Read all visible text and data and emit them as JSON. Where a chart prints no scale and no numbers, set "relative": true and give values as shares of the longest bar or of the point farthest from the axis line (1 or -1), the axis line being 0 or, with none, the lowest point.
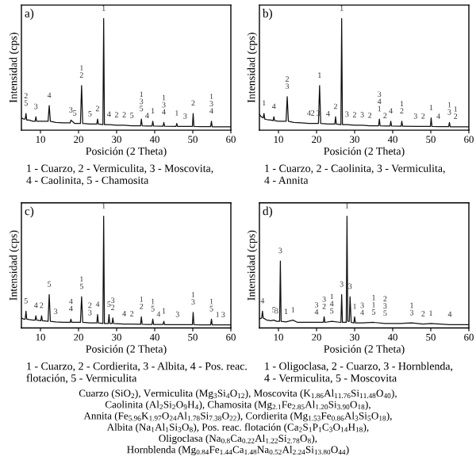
{
  "chart_data": [
    {
      "type": "line",
      "title": "a)",
      "xlabel": "Posición (2 Theta)",
      "ylabel": "Intensidad (cps)",
      "relative": true,
      "color": "#111111",
      "xlim": [
        5,
        60
      ],
      "xticks": [
        10,
        20,
        30,
        40,
        50,
        60
      ],
      "x": [
        5,
        5.5,
        6,
        6.2,
        6.4,
        7,
        8,
        8.6,
        8.8,
        9,
        10,
        11,
        12,
        12.3,
        12.6,
        14,
        16,
        17.8,
        18,
        19,
        20.5,
        20.8,
        21.1,
        23,
        24.8,
        25,
        25.2,
        26.4,
        26.6,
        26.8,
        28,
        30,
        32,
        34,
        36.3,
        36.5,
        36.7,
        38,
        39.3,
        39.5,
        39.7,
        42.2,
        42.4,
        42.6,
        45.6,
        45.8,
        46,
        48,
        49.9,
        50.1,
        50.3,
        52,
        54.7,
        54.9,
        55.1,
        58,
        60
      ],
      "values": [
        0.11,
        0.1,
        0.1,
        0.15,
        0.09,
        0.09,
        0.08,
        0.08,
        0.12,
        0.08,
        0.08,
        0.08,
        0.08,
        0.22,
        0.08,
        0.07,
        0.065,
        0.065,
        0.09,
        0.06,
        0.06,
        0.4,
        0.06,
        0.055,
        0.055,
        0.1,
        0.055,
        0.05,
        1.0,
        0.05,
        0.05,
        0.045,
        0.045,
        0.04,
        0.04,
        0.1,
        0.04,
        0.038,
        0.038,
        0.08,
        0.037,
        0.036,
        0.07,
        0.035,
        0.034,
        0.06,
        0.034,
        0.033,
        0.033,
        0.15,
        0.033,
        0.032,
        0.032,
        0.08,
        0.031,
        0.03,
        0.03
      ],
      "annotations": [
        {
          "text": "2\n5",
          "x": 6.2,
          "y": 0.15
        },
        {
          "text": "3",
          "x": 8.8,
          "y": 0.12
        },
        {
          "text": "4",
          "x": 12.3,
          "y": 0.22
        },
        {
          "text": "3",
          "x": 18,
          "y": 0.09
        },
        {
          "text": "5",
          "x": 19,
          "y": 0.06
        },
        {
          "text": "1\n2",
          "x": 20.8,
          "y": 0.4
        },
        {
          "text": "5",
          "x": 23,
          "y": 0.055
        },
        {
          "text": "2",
          "x": 25,
          "y": 0.1
        },
        {
          "text": "1",
          "x": 26.6,
          "y": 1.0
        },
        {
          "text": "4",
          "x": 28,
          "y": 0.05
        },
        {
          "text": "2",
          "x": 30,
          "y": 0.045
        },
        {
          "text": "2",
          "x": 32,
          "y": 0.045
        },
        {
          "text": "5",
          "x": 34,
          "y": 0.04
        },
        {
          "text": "1\n3\n5",
          "x": 36.5,
          "y": 0.1
        },
        {
          "text": "4",
          "x": 38,
          "y": 0.038
        },
        {
          "text": "1",
          "x": 39.5,
          "y": 0.08
        },
        {
          "text": "1\n3\n4",
          "x": 42.4,
          "y": 0.07
        },
        {
          "text": "1",
          "x": 45.8,
          "y": 0.06
        },
        {
          "text": "3",
          "x": 48,
          "y": 0.033
        },
        {
          "text": "2",
          "x": 50.1,
          "y": 0.15
        },
        {
          "text": "1\n3\n4",
          "x": 54.9,
          "y": 0.08
        },
        "1 - Cuarzo, 2 - Vermiculita, 3 - Moscovita,",
        "4 - Caolinita, 5 - Chamosita"
      ]
    },
    {
      "type": "line",
      "title": "b)",
      "xlabel": "Posición (2 Theta)",
      "ylabel": "Intensidad (cps)",
      "relative": true,
      "color": "#111111",
      "xlim": [
        5,
        60
      ],
      "xticks": [
        10,
        20,
        30,
        40,
        50,
        60
      ],
      "x": [
        5,
        5.5,
        6,
        6.2,
        6.4,
        7,
        8,
        8.6,
        8.8,
        9,
        10,
        11,
        12,
        12.3,
        12.6,
        14,
        16,
        18,
        19,
        20.5,
        20.8,
        21.1,
        23,
        24.8,
        25,
        25.2,
        26.4,
        26.6,
        26.8,
        28,
        30,
        32,
        34,
        36.3,
        36.5,
        36.7,
        38,
        39.3,
        39.5,
        39.7,
        42.2,
        42.4,
        42.6,
        46,
        48,
        49.9,
        50.1,
        50.3,
        52,
        54.7,
        54.9,
        55.1,
        56.5,
        58,
        60
      ],
      "values": [
        0.14,
        0.12,
        0.11,
        0.15,
        0.1,
        0.095,
        0.09,
        0.085,
        0.12,
        0.085,
        0.08,
        0.08,
        0.08,
        0.3,
        0.08,
        0.07,
        0.065,
        0.06,
        0.06,
        0.06,
        0.4,
        0.06,
        0.055,
        0.055,
        0.12,
        0.055,
        0.05,
        1.0,
        0.05,
        0.05,
        0.045,
        0.045,
        0.04,
        0.04,
        0.1,
        0.04,
        0.038,
        0.038,
        0.08,
        0.037,
        0.036,
        0.08,
        0.035,
        0.034,
        0.033,
        0.033,
        0.11,
        0.033,
        0.032,
        0.032,
        0.07,
        0.031,
        0.031,
        0.03,
        0.03
      ],
      "annotations": [
        {
          "text": "1",
          "x": 6.2,
          "y": 0.15
        },
        {
          "text": "4",
          "x": 8.8,
          "y": 0.12
        },
        {
          "text": "2\n3",
          "x": 12.3,
          "y": 0.3
        },
        {
          "text": "4",
          "x": 18,
          "y": 0.06
        },
        {
          "text": "2",
          "x": 19,
          "y": 0.06
        },
        {
          "text": "3",
          "x": 20.5,
          "y": 0.06
        },
        {
          "text": "1",
          "x": 20.8,
          "y": 0.4
        },
        {
          "text": "4",
          "x": 23,
          "y": 0.055
        },
        {
          "text": "2",
          "x": 25,
          "y": 0.12
        },
        {
          "text": "1",
          "x": 26.6,
          "y": 1.0
        },
        {
          "text": "3",
          "x": 28,
          "y": 0.05
        },
        {
          "text": "2",
          "x": 30,
          "y": 0.045
        },
        {
          "text": "3",
          "x": 32,
          "y": 0.045
        },
        {
          "text": "2",
          "x": 34,
          "y": 0.04
        },
        {
          "text": "3\n4\n1",
          "x": 36.5,
          "y": 0.1
        },
        {
          "text": "2",
          "x": 38,
          "y": 0.038
        },
        {
          "text": "4",
          "x": 39.5,
          "y": 0.08
        },
        {
          "text": "1\n2",
          "x": 42.4,
          "y": 0.08
        },
        {
          "text": "3",
          "x": 46,
          "y": 0.033
        },
        {
          "text": "2",
          "x": 48,
          "y": 0.033
        },
        {
          "text": "1",
          "x": 50.1,
          "y": 0.11
        },
        {
          "text": "4",
          "x": 52,
          "y": 0.032
        },
        {
          "text": "1\n3",
          "x": 54.9,
          "y": 0.07
        },
        {
          "text": "1\n2",
          "x": 56.5,
          "y": 0.031
        },
        "1 - Cuarzo, 2 - Caolinita, 3 - Vermiculita,",
        "4 - Annita"
      ]
    },
    {
      "type": "line",
      "title": "c)",
      "xlabel": "Posición (2 Theta)",
      "ylabel": "Intensidad (cps)",
      "relative": true,
      "color": "#111111",
      "xlim": [
        5,
        60
      ],
      "xticks": [
        10,
        20,
        30,
        40,
        50,
        60
      ],
      "x": [
        5,
        5.5,
        6,
        6.2,
        6.4,
        7,
        8,
        8.6,
        8.8,
        9,
        10.1,
        10.3,
        10.5,
        12,
        12.3,
        12.6,
        14,
        16,
        17.8,
        18,
        18.2,
        20.5,
        20.8,
        21.1,
        23,
        24.8,
        25,
        25.2,
        26.4,
        26.6,
        26.8,
        27.8,
        28,
        28.2,
        28.8,
        29,
        29.2,
        32,
        34,
        36.3,
        36.5,
        36.7,
        38,
        39.3,
        39.5,
        39.7,
        41,
        42.2,
        42.4,
        42.6,
        46,
        48,
        49.9,
        50.1,
        50.3,
        52,
        54.7,
        54.9,
        55.1,
        56.5,
        58,
        60
      ],
      "values": [
        0.09,
        0.08,
        0.08,
        0.15,
        0.08,
        0.075,
        0.07,
        0.07,
        0.11,
        0.07,
        0.065,
        0.11,
        0.065,
        0.06,
        0.3,
        0.06,
        0.055,
        0.05,
        0.05,
        0.08,
        0.05,
        0.05,
        0.28,
        0.05,
        0.045,
        0.045,
        0.12,
        0.045,
        0.04,
        1.0,
        0.04,
        0.04,
        0.12,
        0.04,
        0.04,
        0.09,
        0.04,
        0.035,
        0.035,
        0.033,
        0.1,
        0.033,
        0.032,
        0.032,
        0.08,
        0.031,
        0.031,
        0.031,
        0.06,
        0.03,
        0.03,
        0.03,
        0.03,
        0.14,
        0.03,
        0.028,
        0.028,
        0.08,
        0.028,
        0.027,
        0.027,
        0.027
      ],
      "annotations": [
        {
          "text": "5",
          "x": 6.2,
          "y": 0.15
        },
        {
          "text": "4",
          "x": 8.8,
          "y": 0.11
        },
        {
          "text": "2",
          "x": 10.3,
          "y": 0.11
        },
        {
          "text": "5",
          "x": 12.3,
          "y": 0.3
        },
        {
          "text": "3",
          "x": 14,
          "y": 0.055
        },
        {
          "text": "4\n4",
          "x": 18,
          "y": 0.08
        },
        {
          "text": "1\n5",
          "x": 20.8,
          "y": 0.28
        },
        {
          "text": "2\n3",
          "x": 23,
          "y": 0.045
        },
        {
          "text": "4",
          "x": 25,
          "y": 0.12
        },
        {
          "text": "1",
          "x": 26.6,
          "y": 1.0
        },
        {
          "text": "5",
          "x": 28,
          "y": 0.12
        },
        {
          "text": "3\n2",
          "x": 29,
          "y": 0.09
        },
        {
          "text": "4",
          "x": 32,
          "y": 0.035
        },
        {
          "text": "2",
          "x": 34,
          "y": 0.035
        },
        {
          "text": "1\n2",
          "x": 36.5,
          "y": 0.1
        },
        {
          "text": "1\n5",
          "x": 39.5,
          "y": 0.08
        },
        {
          "text": "4",
          "x": 41,
          "y": 0.031
        },
        {
          "text": "1",
          "x": 42.4,
          "y": 0.06
        },
        {
          "text": "3",
          "x": 46,
          "y": 0.03
        },
        {
          "text": "1\n3",
          "x": 50.1,
          "y": 0.14
        },
        {
          "text": "1\n5",
          "x": 54.9,
          "y": 0.08
        },
        {
          "text": "1",
          "x": 56.5,
          "y": 0.027
        },
        {
          "text": "3",
          "x": 58,
          "y": 0.027
        },
        "1 - Cuarzo, 2 - Cordierita, 3 - Albita, 4 - Pos. reac.",
        "flotación, 5 - Vermiculita"
      ]
    },
    {
      "type": "line",
      "title": "d)",
      "xlabel": "Posición (2 Theta)",
      "ylabel": "Intensidad (cps)",
      "relative": true,
      "color": "#111111",
      "xlim": [
        5,
        60
      ],
      "xticks": [
        10,
        20,
        30,
        40,
        50,
        60
      ],
      "x": [
        5,
        5.6,
        5.8,
        6,
        7,
        8,
        8.8,
        9.5,
        10.3,
        10.5,
        10.7,
        12,
        13.8,
        15,
        18,
        20,
        21.8,
        22,
        22.2,
        24,
        26.4,
        26.6,
        26.8,
        27.8,
        28,
        28.2,
        28.6,
        28.8,
        29.1,
        29.8,
        30,
        30.2,
        32,
        35,
        38,
        42,
        45,
        48,
        50,
        55,
        60
      ],
      "values": [
        0.08,
        0.09,
        0.15,
        0.09,
        0.07,
        0.065,
        0.07,
        0.06,
        0.06,
        0.6,
        0.06,
        0.055,
        0.07,
        0.05,
        0.05,
        0.05,
        0.05,
        0.1,
        0.05,
        0.06,
        0.05,
        0.3,
        0.05,
        0.05,
        1.0,
        0.06,
        0.06,
        0.28,
        0.05,
        0.045,
        0.1,
        0.045,
        0.045,
        0.05,
        0.04,
        0.04,
        0.045,
        0.035,
        0.04,
        0.03,
        0.03
      ],
      "annotations": [
        {
          "text": "4",
          "x": 5.8,
          "y": 0.15
        },
        {
          "text": "5",
          "x": 8.8,
          "y": 0.07
        },
        {
          "text": "3",
          "x": 9.5,
          "y": 0.06
        },
        {
          "text": "3",
          "x": 10.5,
          "y": 0.6
        },
        {
          "text": "1",
          "x": 12,
          "y": 0.055
        },
        {
          "text": "1",
          "x": 13.8,
          "y": 0.07
        },
        {
          "text": "3\n4",
          "x": 20,
          "y": 0.05
        },
        {
          "text": "3\n2",
          "x": 22,
          "y": 0.1
        },
        {
          "text": "1\n4\n5",
          "x": 24,
          "y": 0.06
        },
        {
          "text": "3",
          "x": 26.6,
          "y": 0.3
        },
        {
          "text": "1",
          "x": 28,
          "y": 1.0
        },
        {
          "text": "3",
          "x": 28.8,
          "y": 0.28
        },
        {
          "text": "1",
          "x": 30,
          "y": 0.1
        },
        {
          "text": "3\n4",
          "x": 32,
          "y": 0.045
        },
        {
          "text": "1\n1\n5",
          "x": 35,
          "y": 0.05
        },
        {
          "text": "2\n3\n5",
          "x": 38,
          "y": 0.04
        },
        {
          "text": "1\n3",
          "x": 45,
          "y": 0.045
        },
        {
          "text": "2",
          "x": 48,
          "y": 0.035
        },
        {
          "text": "1",
          "x": 50,
          "y": 0.04
        },
        {
          "text": "4",
          "x": 55,
          "y": 0.03
        },
        "1 - Oligoclasa, 2 - Cuarzo, 3 - Hornblenda,",
        "4 - Vermiculita, 5 - Moscovita"
      ]
    },
    {
      "type": "other",
      "annotations": [
        "Cuarzo (SiO$_{2}$), Vermiculita (Mg$_{3}$Si$_{4}$O$_{12}$), Moscovita (K$_{1.86}$Al$_{11.76}$Si$_{11.48}$O$_{40}$),",
        "Caolinita (Al$_{2}$Si$_{2}$O$_{9}$H$_{4}$), Chamosita (Mg$_{2.1}$Fe$_{2.85}$Al$_{1.20}$Si$_{3.90}$O$_{18}$),",
        "Annita (Fe$_{5.96}$K$_{1.97}$O$_{24}$Al$_{1.78}$Si$_{7.38}$O$_{22}$), Cordierita (Mg$_{1.53}$Fe$_{0.86}$Al$_{3}$Si$_{5}$O$_{18}$),",
        "Albita (Na$_{1}$Al$_{1}$Si$_{3}$O$_{8}$), Pos. reac. flotación (Ca$_{2}$S$_{1}$P$_{1}$C$_{3}$O$_{14}$H$_{18}$),",
        "Oligoclasa (Na$_{0.8}$Ca$_{0.22}$Al$_{1.22}$Si$_{2.78}$O$_{8}$),",
        "Hornblenda (Mg$_{0.84}$Fe$_{1.44}$Ca$_{1.48}$Na$_{0.52}$Al$_{2.24}$Si$_{13.80}$O$_{44}$)"
      ]
    }
  ]
}
